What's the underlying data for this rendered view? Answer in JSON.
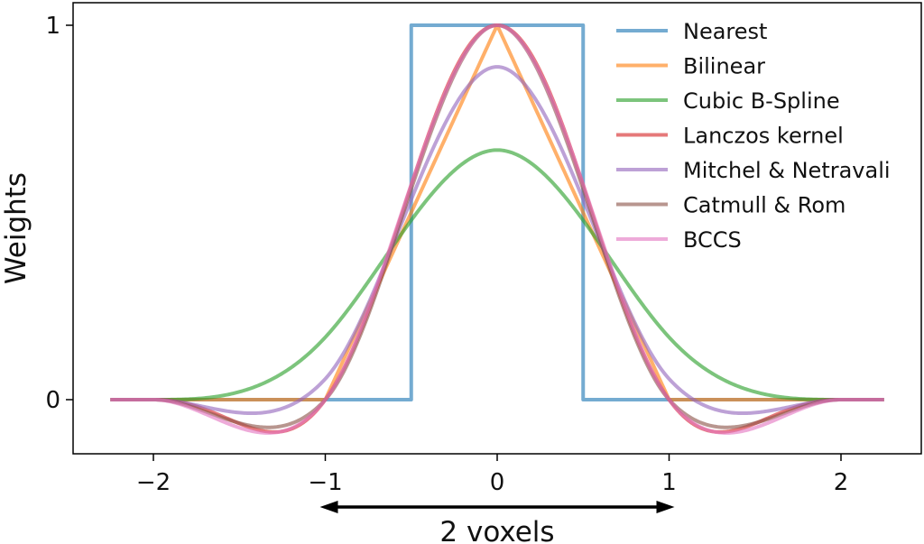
{
  "chart_data": {
    "type": "line",
    "title": "",
    "xlabel": "",
    "ylabel": "Weights",
    "xlim": [
      -2.5,
      2.5
    ],
    "ylim": [
      -0.15,
      1.05
    ],
    "xticks": [
      -2,
      -1,
      0,
      1,
      2
    ],
    "xtick_labels": [
      "−2",
      "−1",
      "0",
      "1",
      "2"
    ],
    "yticks": [
      0,
      1
    ],
    "ytick_labels": [
      "0",
      "1"
    ],
    "legend_position": "top-right",
    "grid": false,
    "x_domain": [
      -2.25,
      2.25
    ],
    "series": [
      {
        "name": "Nearest",
        "kernel": "nearest",
        "color": "#1f77b4"
      },
      {
        "name": "Bilinear",
        "kernel": "bilinear",
        "color": "#ff7f0e"
      },
      {
        "name": "Cubic B-Spline",
        "kernel": "cubic_bspline",
        "color": "#2ca02c"
      },
      {
        "name": "Lanczos kernel",
        "kernel": "lanczos",
        "color": "#d62728"
      },
      {
        "name": "Mitchel & Netravali",
        "kernel": "mitchell_netravali",
        "color": "#9467bd"
      },
      {
        "name": "Catmull & Rom",
        "kernel": "catmull_rom",
        "color": "#8c564b"
      },
      {
        "name": "BCCS",
        "kernel": "bccs",
        "color": "#e377c2"
      }
    ],
    "annotation": {
      "text": "2 voxels",
      "from_x": -1,
      "to_x": 1
    }
  }
}
